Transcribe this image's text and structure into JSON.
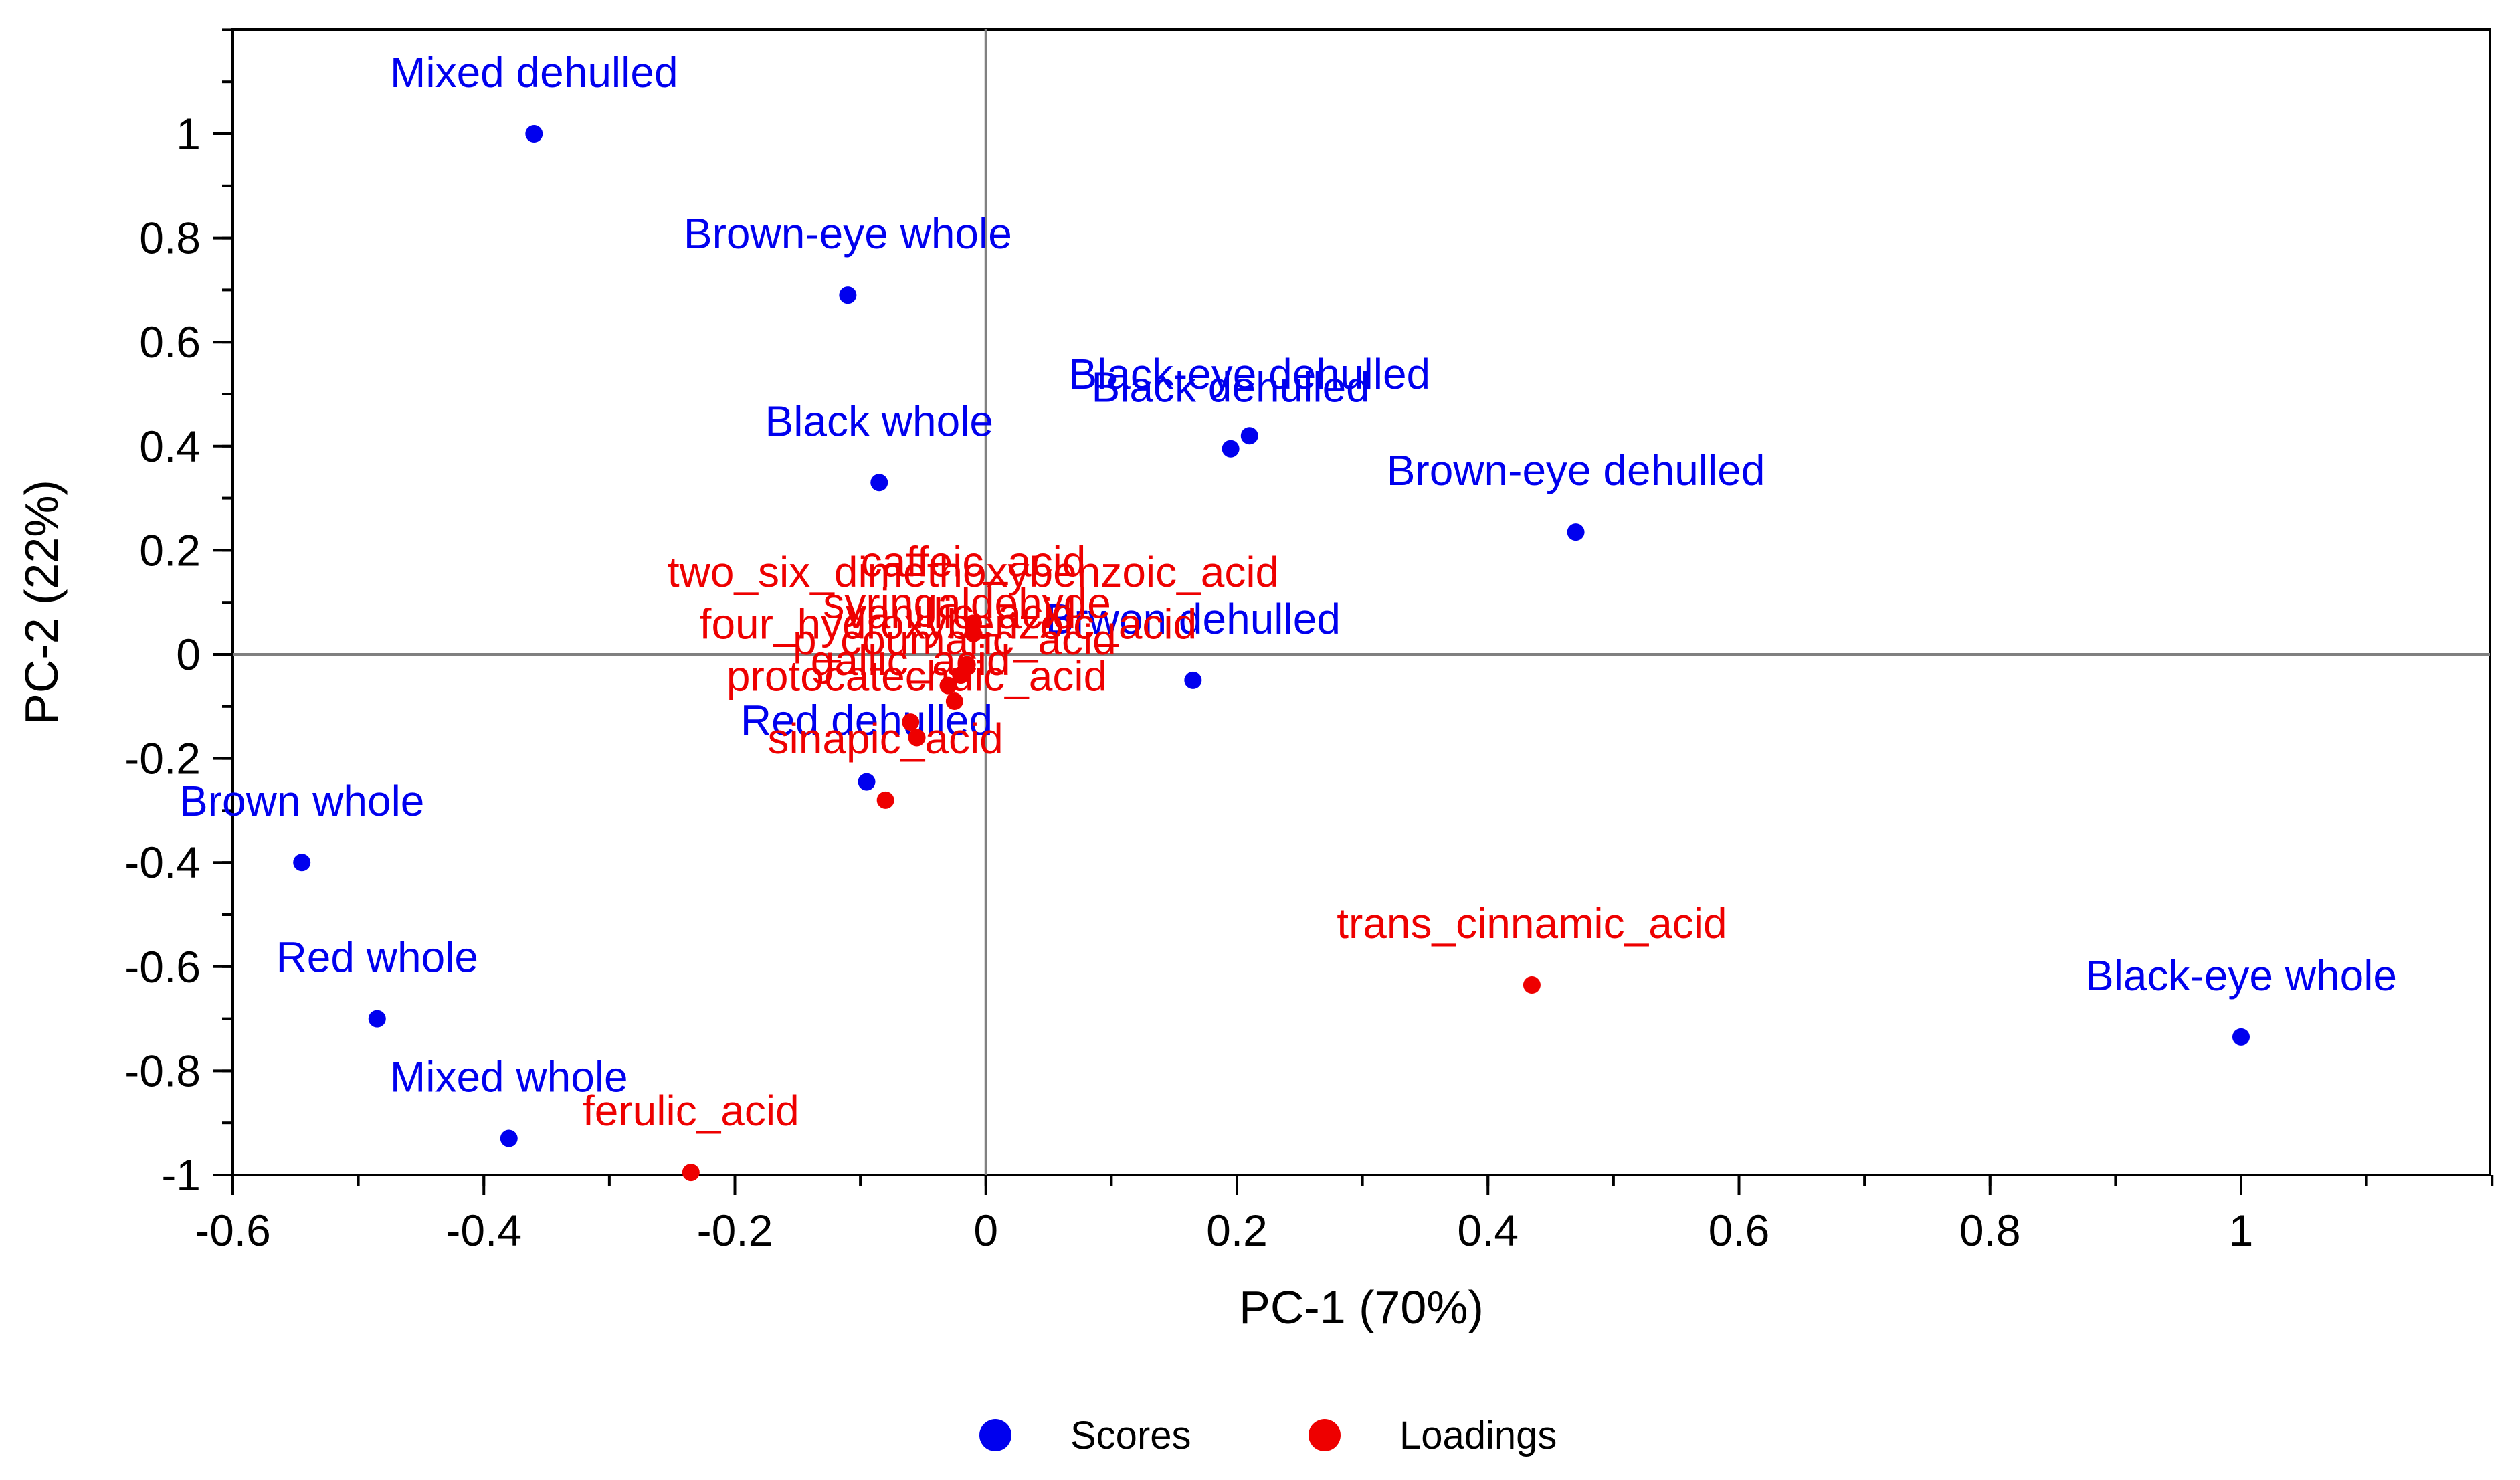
{
  "chart_data": {
    "type": "scatter",
    "xlabel": "PC-1 (70%)",
    "ylabel": "PC-2 (22%)",
    "xlim": [
      -0.6,
      1.2
    ],
    "ylim": [
      -1.0,
      1.2
    ],
    "xticks": [
      -0.6,
      -0.4,
      -0.2,
      0,
      0.2,
      0.4,
      0.6,
      0.8,
      1
    ],
    "xtick_labels": [
      "-0.6",
      "-0.4",
      "-0.2",
      "0",
      "0.2",
      "0.4",
      "0.6",
      "0.8",
      "1"
    ],
    "yticks": [
      -1,
      -0.8,
      -0.6,
      -0.4,
      -0.2,
      0,
      0.2,
      0.4,
      0.6,
      0.8,
      1
    ],
    "ytick_labels": [
      "-1",
      "-0.8",
      "-0.6",
      "-0.4",
      "-0.2",
      "0",
      "0.2",
      "0.4",
      "0.6",
      "0.8",
      "1"
    ],
    "legend": [
      {
        "name": "Scores",
        "color": "#0000ee"
      },
      {
        "name": "Loadings",
        "color": "#ee0000"
      }
    ],
    "series": [
      {
        "name": "Scores",
        "color": "#0000ee",
        "points": [
          {
            "label": "Mixed dehulled",
            "x": -0.36,
            "y": 1.0
          },
          {
            "label": "Brown-eye whole",
            "x": -0.11,
            "y": 0.69
          },
          {
            "label": "Black-eye dehulled",
            "x": 0.21,
            "y": 0.42
          },
          {
            "label": "Black dehulled",
            "x": 0.195,
            "y": 0.395
          },
          {
            "label": "Black whole",
            "x": -0.085,
            "y": 0.33
          },
          {
            "label": "Brown-eye dehulled",
            "x": 0.47,
            "y": 0.235
          },
          {
            "label": "Brwon dehulled",
            "x": 0.165,
            "y": -0.05
          },
          {
            "label": "Red dehulled",
            "x": -0.095,
            "y": -0.245
          },
          {
            "label": "Brown whole",
            "x": -0.545,
            "y": -0.4
          },
          {
            "label": "Red whole",
            "x": -0.485,
            "y": -0.7
          },
          {
            "label": "Mixed whole",
            "x": -0.38,
            "y": -0.93
          },
          {
            "label": "Black-eye whole",
            "x": 1.0,
            "y": -0.735
          }
        ]
      },
      {
        "name": "Loadings",
        "color": "#ee0000",
        "points": [
          {
            "label": "caffeic_acid",
            "x": -0.01,
            "y": 0.06
          },
          {
            "label": "two_six_dimethoxybenzoic_acid",
            "x": -0.01,
            "y": 0.04
          },
          {
            "label": "syringaldehyde",
            "x": -0.015,
            "y": -0.02
          },
          {
            "label": "vanillic_acid",
            "x": -0.02,
            "y": -0.04
          },
          {
            "label": "four_hydroxybenzoic_acid",
            "x": -0.03,
            "y": -0.06
          },
          {
            "label": "p_coumaric_acid",
            "x": -0.025,
            "y": -0.09
          },
          {
            "label": "gallic_acid",
            "x": -0.06,
            "y": -0.13
          },
          {
            "label": "protocatechuic_acid",
            "x": -0.055,
            "y": -0.16
          },
          {
            "label": "sinapic_acid",
            "x": -0.08,
            "y": -0.28
          },
          {
            "label": "trans_cinnamic_acid",
            "x": 0.435,
            "y": -0.635
          },
          {
            "label": "ferulic_acid",
            "x": -0.235,
            "y": -0.995
          }
        ]
      }
    ]
  }
}
